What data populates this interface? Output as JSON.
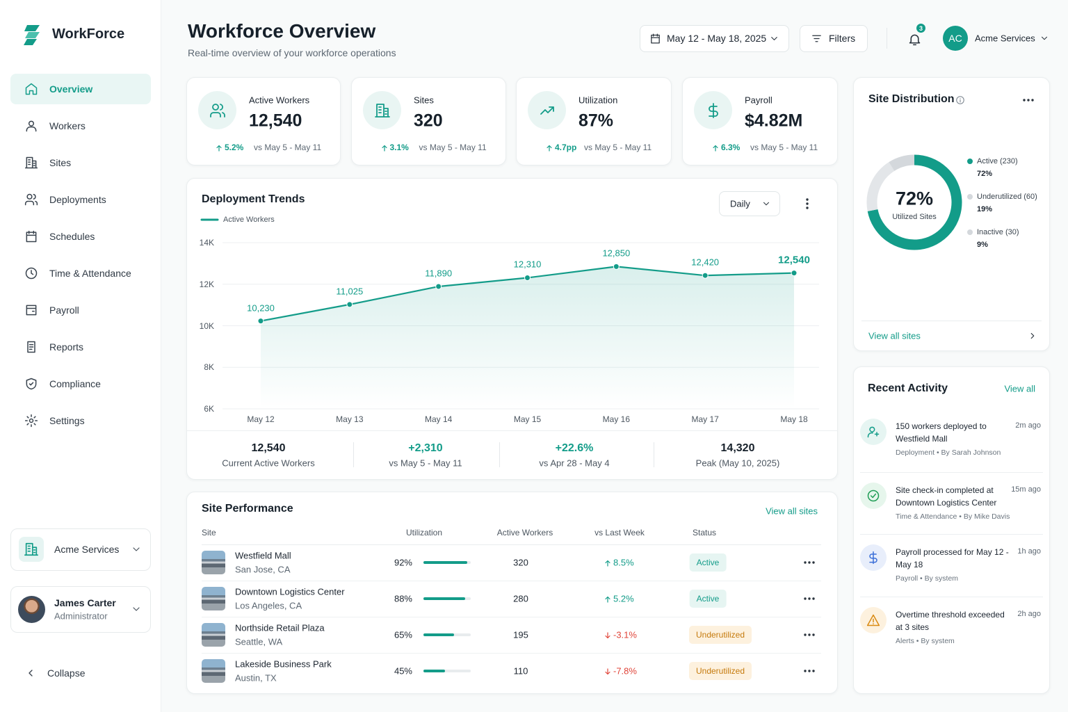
{
  "sidebar": {
    "brand": "WorkForce",
    "nav": [
      "Overview",
      "Workers",
      "Sites",
      "Deployments",
      "Schedules",
      "Time & Attendance",
      "Payroll",
      "Reports",
      "Compliance",
      "Settings"
    ],
    "org": "Acme Services",
    "user": {
      "name": "James Carter",
      "role": "Administrator"
    },
    "collapse": "Collapse"
  },
  "header": {
    "title": "Workforce Overview",
    "subtitle": "Real-time overview of your workforce operations",
    "date_range": "May 12 - May 18, 2025",
    "filters": "Filters",
    "notifications": 3,
    "account_initials": "AC",
    "account": "Acme Services"
  },
  "kpis": [
    {
      "label": "Active Workers",
      "value": "12,540",
      "change": "5.2%",
      "compare": "vs May 5 - May 11"
    },
    {
      "label": "Sites",
      "value": "320",
      "change": "3.1%",
      "compare": "vs May 5 - May 11"
    },
    {
      "label": "Utilization",
      "value": "87%",
      "change": "4.7pp",
      "compare": "vs May 5 - May 11"
    },
    {
      "label": "Payroll",
      "value": "$4.82M",
      "change": "6.3%",
      "compare": "vs May 5 - May 11"
    }
  ],
  "chart_data": [
    {
      "type": "line",
      "title": "Deployment Trends",
      "period": "Daily",
      "categories": [
        "May 12",
        "May 13",
        "May 14",
        "May 15",
        "May 16",
        "May 17",
        "May 18"
      ],
      "series": [
        {
          "name": "Active Workers",
          "color": "#139c89",
          "values": [
            10230,
            11025,
            11890,
            12310,
            12850,
            12420,
            12540
          ],
          "value_labels": [
            "10,230",
            "11,025",
            "11,890",
            "12,310",
            "12,850",
            "12,420",
            "12,540"
          ]
        }
      ],
      "ylim": [
        6000,
        14000
      ],
      "yticks": [
        {
          "value": 6000,
          "label": "6K"
        },
        {
          "value": 8000,
          "label": "8K"
        },
        {
          "value": 10000,
          "label": "10K"
        },
        {
          "value": 12000,
          "label": "12K"
        },
        {
          "value": 14000,
          "label": "14K"
        }
      ],
      "grid": true
    },
    {
      "type": "pie",
      "title": "Site Distribution",
      "categories": [
        "Active (230)",
        "Underutilized (60)",
        "Inactive (30)"
      ],
      "values": [
        72,
        19,
        9
      ],
      "value_labels": [
        "72%",
        "19%",
        "9%"
      ],
      "colors": [
        "#139c89",
        "#e3e6e9",
        "#d4d8dc"
      ],
      "center_label": "72%",
      "center_caption": "Utilized Sites",
      "link": "View all sites"
    }
  ],
  "trend_summary": [
    {
      "value": "12,540",
      "label": "Current Active Workers"
    },
    {
      "value": "+2,310",
      "label": "vs May 5 - May 11"
    },
    {
      "value": "+22.6%",
      "label": "vs Apr 28 - May 4"
    },
    {
      "value": "14,320",
      "label": "Peak (May 10, 2025)"
    }
  ],
  "site_performance": {
    "title": "Site Performance",
    "link": "View all sites",
    "columns": [
      "Site",
      "Utilization",
      "Active Workers",
      "vs Last Week",
      "Status"
    ],
    "rows": [
      {
        "name": "Westfield Mall",
        "location": "San Jose, CA",
        "utilization": 92,
        "utilization_label": "92%",
        "active_workers": 320,
        "vs_last_week": "8.5%",
        "status": "Active"
      },
      {
        "name": "Downtown Logistics Center",
        "location": "Los Angeles, CA",
        "utilization": 88,
        "utilization_label": "88%",
        "active_workers": 280,
        "vs_last_week": "5.2%",
        "status": "Active"
      },
      {
        "name": "Northside Retail Plaza",
        "location": "Seattle, WA",
        "utilization": 65,
        "utilization_label": "65%",
        "active_workers": 195,
        "vs_last_week": "-3.1%",
        "status": "Underutilized"
      },
      {
        "name": "Lakeside Business Park",
        "location": "Austin, TX",
        "utilization": 45,
        "utilization_label": "45%",
        "active_workers": 110,
        "vs_last_week": "-7.8%",
        "status": "Underutilized"
      }
    ]
  },
  "recent_activity": {
    "title": "Recent Activity",
    "link": "View all",
    "items": [
      {
        "text": "150 workers deployed to Westfield Mall",
        "time": "2m ago",
        "meta": "Deployment • By Sarah Johnson"
      },
      {
        "text": "Site check-in completed at Downtown Logistics Center",
        "time": "15m ago",
        "meta": "Time & Attendance • By Mike Davis"
      },
      {
        "text": "Payroll processed for May 12 - May 18",
        "time": "1h ago",
        "meta": "Payroll • By system"
      },
      {
        "text": "Overtime threshold exceeded at 3 sites",
        "time": "2h ago",
        "meta": "Alerts • By system"
      }
    ]
  }
}
